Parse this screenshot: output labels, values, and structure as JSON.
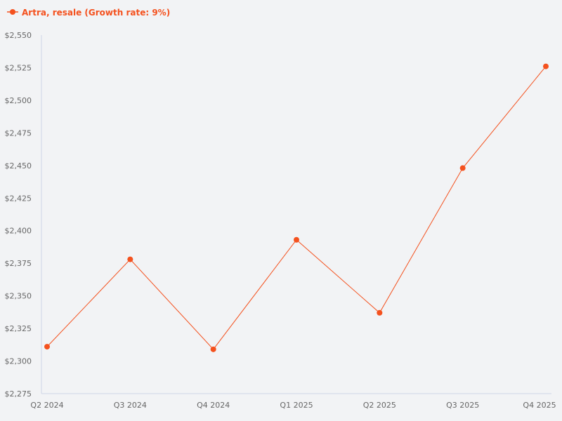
{
  "colors": {
    "background": "#f2f3f5",
    "series": "#f4511e",
    "axis_line": "#cfd6e6",
    "tick_text": "#666666"
  },
  "chart_data": {
    "type": "line",
    "title": "",
    "xlabel": "",
    "ylabel": "",
    "categories": [
      "Q2 2024",
      "Q3 2024",
      "Q4 2024",
      "Q1 2025",
      "Q2 2025",
      "Q3 2025",
      "Q4 2025"
    ],
    "series": [
      {
        "name": "Artra, resale (Growth rate: 9%)",
        "values": [
          2311,
          2378,
          2309,
          2393,
          2337,
          2448,
          2526
        ]
      }
    ],
    "ylim": [
      2275,
      2550
    ],
    "yticks": [
      2275,
      2300,
      2325,
      2350,
      2375,
      2400,
      2425,
      2450,
      2475,
      2500,
      2525,
      2550
    ],
    "ytick_labels": [
      "$2,275",
      "$2,300",
      "$2,325",
      "$2,350",
      "$2,375",
      "$2,400",
      "$2,425",
      "$2,450",
      "$2,475",
      "$2,500",
      "$2,525",
      "$2,550"
    ],
    "grid": false,
    "legend": "top-left"
  }
}
